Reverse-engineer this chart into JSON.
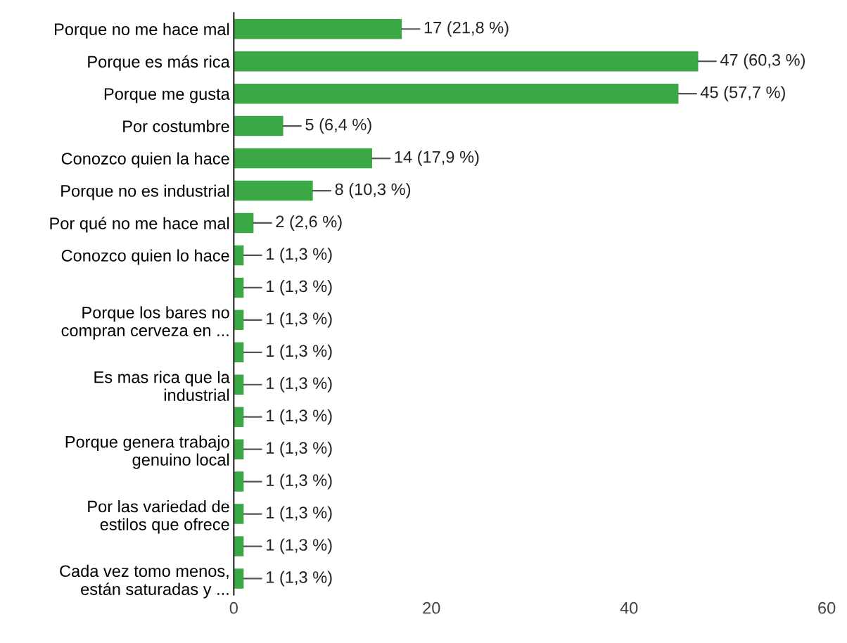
{
  "chart_data": {
    "type": "bar",
    "orientation": "horizontal",
    "categories": [
      "Porque no me hace mal",
      "Porque es más rica",
      "Porque me gusta",
      "Por costumbre",
      "Conozco quien la hace",
      "Porque no es industrial",
      "Por qué no me hace mal",
      "Conozco quien lo hace",
      null,
      "Porque los bares no\ncompran cerveza en ...",
      null,
      "Es mas rica que la\nindustrial",
      null,
      "Porque genera trabajo\ngenuino local",
      null,
      "Por las variedad de\nestilos que ofrece",
      null,
      "Cada vez tomo menos,\nestán saturadas y ..."
    ],
    "values": [
      17,
      47,
      45,
      5,
      14,
      8,
      2,
      1,
      1,
      1,
      1,
      1,
      1,
      1,
      1,
      1,
      1,
      1
    ],
    "value_labels": [
      "17 (21,8 %)",
      "47 (60,3 %)",
      "45 (57,7 %)",
      "5 (6,4 %)",
      "14 (17,9 %)",
      "8 (10,3 %)",
      "2 (2,6 %)",
      "1 (1,3 %)",
      "1 (1,3 %)",
      "1 (1,3 %)",
      "1 (1,3 %)",
      "1 (1,3 %)",
      "1 (1,3 %)",
      "1 (1,3 %)",
      "1 (1,3 %)",
      "1 (1,3 %)",
      "1 (1,3 %)",
      "1 (1,3 %)"
    ],
    "color": "#3ba846",
    "xlim": [
      0,
      60
    ],
    "xticks": [
      0,
      20,
      40,
      60
    ],
    "grid": false
  }
}
